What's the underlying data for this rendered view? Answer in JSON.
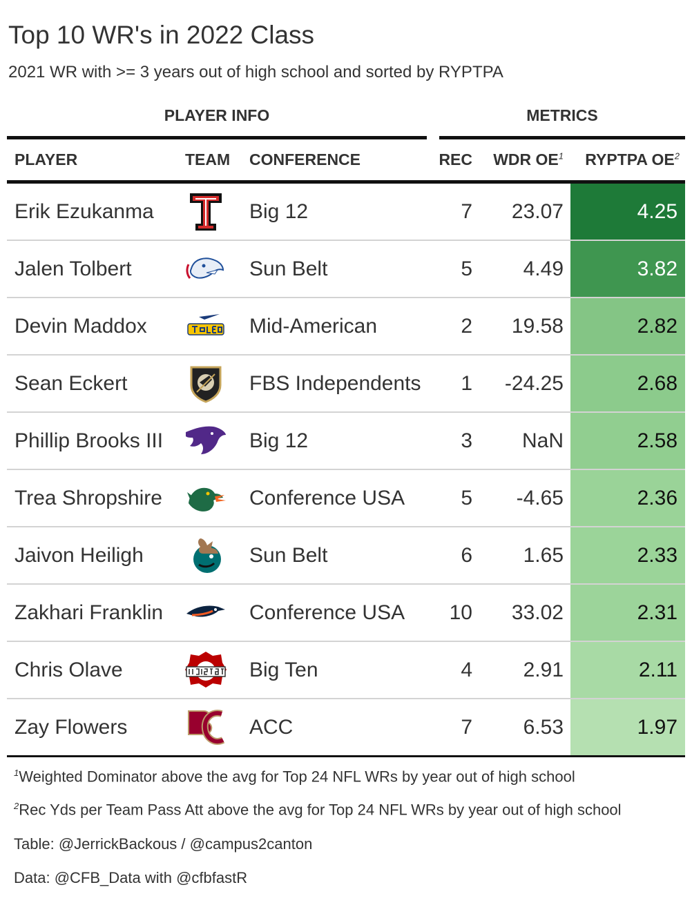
{
  "title": "Top 10 WR's in 2022 Class",
  "subtitle": "2021 WR with >= 3 years out of high school and sorted by RYPTPA",
  "spanners": {
    "player_info": "PLAYER INFO",
    "metrics": "METRICS"
  },
  "columns": {
    "player": "PLAYER",
    "team": "TEAM",
    "conference": "CONFERENCE",
    "rec": "REC",
    "wdr": "WDR OE",
    "wdr_mark": "1",
    "ryptpa": "RYPTPA OE",
    "ryptpa_mark": "2"
  },
  "rows": [
    {
      "player": "Erik Ezukanma",
      "logo": "texas-tech-logo",
      "conference": "Big 12",
      "rec": "7",
      "wdr": "23.07",
      "ryptpa": "4.25",
      "fill": "#1e7a38",
      "text_color": "#ffffff"
    },
    {
      "player": "Jalen Tolbert",
      "logo": "south-alabama-logo",
      "conference": "Sun Belt",
      "rec": "5",
      "wdr": "4.49",
      "ryptpa": "3.82",
      "fill": "#3f9650",
      "text_color": "#ffffff"
    },
    {
      "player": "Devin Maddox",
      "logo": "toledo-logo",
      "conference": "Mid-American",
      "rec": "2",
      "wdr": "19.58",
      "ryptpa": "2.82",
      "fill": "#84c585",
      "text_color": "#111111"
    },
    {
      "player": "Sean Eckert",
      "logo": "army-logo",
      "conference": "FBS Independents",
      "rec": "1",
      "wdr": "-24.25",
      "ryptpa": "2.68",
      "fill": "#8ccb8c",
      "text_color": "#111111"
    },
    {
      "player": "Phillip Brooks III",
      "logo": "kansas-state-logo",
      "conference": "Big 12",
      "rec": "3",
      "wdr": "NaN",
      "ryptpa": "2.58",
      "fill": "#91ce90",
      "text_color": "#111111"
    },
    {
      "player": "Trea Shropshire",
      "logo": "uab-logo",
      "conference": "Conference USA",
      "rec": "5",
      "wdr": "-4.65",
      "ryptpa": "2.36",
      "fill": "#9ad398",
      "text_color": "#111111"
    },
    {
      "player": "Jaivon Heiligh",
      "logo": "coastal-carolina-logo",
      "conference": "Sun Belt",
      "rec": "6",
      "wdr": "1.65",
      "ryptpa": "2.33",
      "fill": "#9bd499",
      "text_color": "#111111"
    },
    {
      "player": "Zakhari Franklin",
      "logo": "utsa-logo",
      "conference": "Conference USA",
      "rec": "10",
      "wdr": "33.02",
      "ryptpa": "2.31",
      "fill": "#9cd49a",
      "text_color": "#111111"
    },
    {
      "player": "Chris Olave",
      "logo": "ohio-state-logo",
      "conference": "Big Ten",
      "rec": "4",
      "wdr": "2.91",
      "ryptpa": "2.11",
      "fill": "#a8daa5",
      "text_color": "#111111"
    },
    {
      "player": "Zay Flowers",
      "logo": "boston-college-logo",
      "conference": "ACC",
      "rec": "7",
      "wdr": "6.53",
      "ryptpa": "1.97",
      "fill": "#b5e0b1",
      "text_color": "#111111"
    }
  ],
  "footnotes": [
    {
      "mark": "1",
      "text": "Weighted Dominator above the avg for Top 24 NFL WRs by year out of high school"
    },
    {
      "mark": "2",
      "text": "Rec Yds per Team Pass Att above the avg for Top 24 NFL WRs by year out of high school"
    }
  ],
  "source_notes": [
    "Table: @JerrickBackous / @campus2canton",
    "Data: @CFB_Data with @cfbfastR"
  ]
}
